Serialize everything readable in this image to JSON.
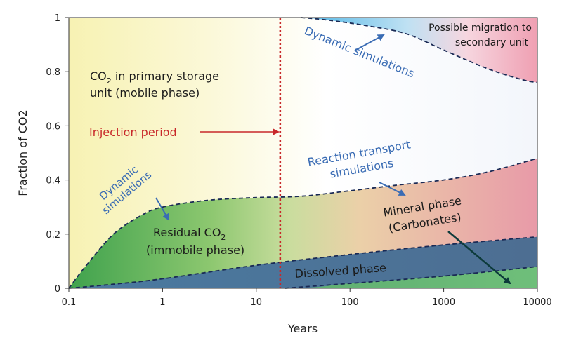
{
  "chart_data": {
    "type": "area",
    "title": "",
    "xlabel": "Years",
    "ylabel": "Fraction of CO2",
    "xscale": "log",
    "xlim": [
      0.1,
      10000
    ],
    "ylim": [
      0,
      1
    ],
    "xticks": [
      0.1,
      1,
      10,
      100,
      1000,
      10000
    ],
    "xtick_labels": [
      "0.1",
      "1",
      "10",
      "100",
      "1000",
      "10000"
    ],
    "yticks": [
      0,
      0.2,
      0.4,
      0.6,
      0.8,
      1
    ],
    "ytick_labels": [
      "0",
      "0.2",
      "0.4",
      "0.6",
      "0.8",
      "1"
    ],
    "grid": false,
    "legend": "none",
    "injection_end_year": 18,
    "boundaries": [
      {
        "name": "mineral-upper",
        "points": [
          [
            0.1,
            0
          ],
          [
            20,
            0
          ],
          [
            100,
            0.018
          ],
          [
            1000,
            0.045
          ],
          [
            10000,
            0.08
          ]
        ]
      },
      {
        "name": "dissolved-upper",
        "points": [
          [
            0.1,
            0
          ],
          [
            0.3,
            0.015
          ],
          [
            1,
            0.035
          ],
          [
            10,
            0.085
          ],
          [
            100,
            0.125
          ],
          [
            1000,
            0.16
          ],
          [
            10000,
            0.19
          ]
        ]
      },
      {
        "name": "residual-upper",
        "points": [
          [
            0.1,
            0
          ],
          [
            0.15,
            0.08
          ],
          [
            0.3,
            0.2
          ],
          [
            0.6,
            0.27
          ],
          [
            1,
            0.3
          ],
          [
            3,
            0.325
          ],
          [
            10,
            0.335
          ],
          [
            30,
            0.34
          ],
          [
            100,
            0.36
          ],
          [
            300,
            0.38
          ],
          [
            1000,
            0.4
          ],
          [
            3000,
            0.43
          ],
          [
            10000,
            0.48
          ]
        ]
      },
      {
        "name": "mobile-upper",
        "points": [
          [
            30,
            1
          ],
          [
            60,
            0.99
          ],
          [
            150,
            0.97
          ],
          [
            400,
            0.94
          ],
          [
            1000,
            0.88
          ],
          [
            3000,
            0.81
          ],
          [
            7000,
            0.77
          ],
          [
            10000,
            0.76
          ]
        ]
      }
    ],
    "regions": [
      "CO2 in primary storage unit (mobile phase)",
      "Residual CO2 (immobile phase)",
      "Dissolved phase",
      "Mineral phase (Carbonates)",
      "Possible migration to secondary unit"
    ],
    "colors": {
      "mobile": "#f8f3b8",
      "residual": "#4fac55",
      "dissolved": "#4d7398",
      "mineral": "#e6a5aa",
      "mineral_end": "#62b070",
      "migration": "#f0a3b5",
      "migration_blue": "#4fb6e6",
      "boundary": "#1a2a55",
      "injection": "#c8282a",
      "annotation": "#3a6cb4",
      "mineral_arrow": "#0d3b3b"
    },
    "annotations": {
      "mobile_line1": "CO",
      "mobile_sub": "2",
      "mobile_line1_rest": " in primary storage",
      "mobile_line2": "unit (mobile phase)",
      "injection": "Injection period",
      "dyn_sim_left_1": "Dynamic",
      "dyn_sim_left_2": "simulations",
      "residual_line1": "Residual CO",
      "residual_sub": "2",
      "residual_line2": "(immobile phase)",
      "dyn_sim_top": "Dynamic simulations",
      "migration_1": "Possible migration to",
      "migration_2": "secondary unit",
      "reaction_1": "Reaction transport",
      "reaction_2": "simulations",
      "mineral_1": "Mineral phase",
      "mineral_2": "(Carbonates)",
      "dissolved": "Dissolved phase"
    }
  }
}
